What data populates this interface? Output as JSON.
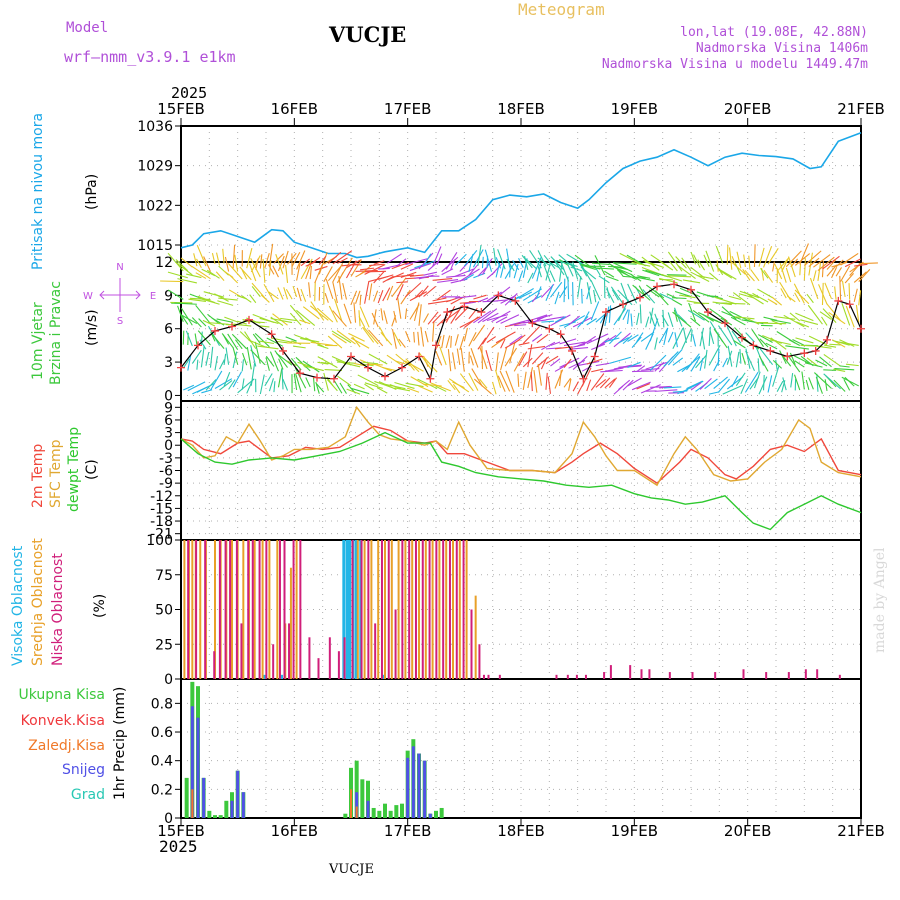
{
  "header": {
    "model_label": "Model",
    "model_name": "wrf–nmm_v3.9.1  e1km",
    "station": "VUCJE",
    "meteogram": "Meteogram",
    "lonlat": "lon,lat (19.08E, 42.88N)",
    "elevation": "Nadmorska Visina 1406m",
    "model_elevation": "Nadmorska Visina u modelu 1449.47m",
    "year": "2025",
    "footer_station": "VUCJE",
    "made_by": "made by Angel"
  },
  "colors": {
    "pressure": "#1aa7e8",
    "temp2m": "#f0483c",
    "sfc": "#e0a832",
    "dew": "#2ec82e",
    "high": "#22b5e6",
    "mid": "#e8a028",
    "low": "#d01e7a",
    "total": "#3cc83c",
    "conv": "#f0383c",
    "frozen": "#f07828",
    "snow": "#5050e6",
    "hail": "#28c8b4",
    "compass": "#c050e0"
  },
  "chart_data": [
    {
      "type": "line",
      "ylabel": "Pritisak na nivou mora",
      "unit": "(hPa)",
      "x_ticks": [
        "15FEB",
        "16FEB",
        "17FEB",
        "18FEB",
        "19FEB",
        "20FEB",
        "21FEB"
      ],
      "x_range_days": [
        0,
        6
      ],
      "ylim": [
        1012,
        1036
      ],
      "y_ticks": [
        1015,
        1022,
        1029,
        1036
      ],
      "series": [
        {
          "x": [
            0,
            0.1,
            0.2,
            0.35,
            0.5,
            0.65,
            0.8,
            0.9,
            1.0,
            1.15,
            1.3,
            1.45,
            1.55,
            1.65,
            1.8,
            2.0,
            2.15,
            2.3,
            2.45,
            2.6,
            2.75,
            2.9,
            3.05,
            3.2,
            3.35,
            3.5,
            3.6,
            3.75,
            3.9,
            4.05,
            4.2,
            4.35,
            4.5,
            4.65,
            4.8,
            4.95,
            5.1,
            5.25,
            5.4,
            5.55,
            5.65,
            5.8,
            6.0
          ],
          "y": [
            1014.5,
            1015,
            1017,
            1017.5,
            1016.5,
            1015.5,
            1017.7,
            1017.5,
            1015.5,
            1014.5,
            1013.5,
            1013.5,
            1012.8,
            1013,
            1013.8,
            1014.5,
            1013.7,
            1017.5,
            1017.5,
            1019.5,
            1023,
            1023.8,
            1023.5,
            1024,
            1022.5,
            1021.5,
            1023,
            1026,
            1028.5,
            1029.8,
            1030.5,
            1031.8,
            1030.5,
            1029,
            1030.5,
            1031.2,
            1030.8,
            1030.6,
            1030.2,
            1028.5,
            1028.8,
            1033.3,
            1034.8
          ]
        }
      ]
    },
    {
      "type": "line",
      "ylabel": [
        "10m Vjetar",
        "Brzina i Pravac"
      ],
      "unit": "(m/s)",
      "compass": {
        "n": "N",
        "e": "E",
        "w": "W",
        "s": "S"
      },
      "ylim": [
        -0.5,
        12
      ],
      "y_ticks": [
        0,
        3,
        6,
        9,
        12
      ],
      "series": [
        {
          "name": "wind speed",
          "x": [
            0,
            0.15,
            0.3,
            0.45,
            0.6,
            0.8,
            0.9,
            1.05,
            1.2,
            1.35,
            1.5,
            1.65,
            1.8,
            1.95,
            2.1,
            2.2,
            2.25,
            2.35,
            2.5,
            2.65,
            2.8,
            2.95,
            3.1,
            3.25,
            3.35,
            3.45,
            3.55,
            3.65,
            3.75,
            3.9,
            4.05,
            4.2,
            4.35,
            4.5,
            4.65,
            4.8,
            4.95,
            5.05,
            5.2,
            5.35,
            5.5,
            5.6,
            5.7,
            5.8,
            5.9,
            6.0
          ],
          "y": [
            2.5,
            4.5,
            5.8,
            6.2,
            6.8,
            5.5,
            4,
            2,
            1.6,
            1.5,
            3.5,
            2.5,
            1.7,
            2.5,
            3.5,
            1.5,
            4.5,
            7.5,
            8,
            7.5,
            9,
            8.5,
            6.5,
            6,
            5.5,
            4,
            1.5,
            3.5,
            7.5,
            8.2,
            8.8,
            9.8,
            10,
            9.5,
            7.5,
            6.5,
            5.2,
            4.5,
            4,
            3.5,
            3.8,
            4,
            5,
            8.5,
            8.2,
            6
          ]
        }
      ],
      "wind_directions": [
        "N",
        "NE",
        "E",
        "SE",
        "S",
        "SW",
        "W",
        "NW"
      ]
    },
    {
      "type": "line",
      "ylabel": [
        "2m Temp",
        "SFC Temp",
        "dewpt Temp"
      ],
      "unit": "(C)",
      "ylim": [
        -22.5,
        10.5
      ],
      "y_ticks": [
        9,
        6,
        3,
        0,
        -3,
        -6,
        -9,
        -12,
        -15,
        -18,
        -21
      ],
      "series": [
        {
          "name": "2m Temp",
          "x": [
            0,
            0.1,
            0.2,
            0.35,
            0.5,
            0.6,
            0.8,
            0.95,
            1.1,
            1.25,
            1.4,
            1.55,
            1.7,
            1.85,
            2.0,
            2.15,
            2.25,
            2.35,
            2.5,
            2.7,
            2.9,
            3.1,
            3.3,
            3.45,
            3.55,
            3.7,
            3.85,
            4.0,
            4.2,
            4.4,
            4.5,
            4.65,
            4.8,
            4.9,
            5.05,
            5.2,
            5.35,
            5.5,
            5.65,
            5.8,
            6.0
          ],
          "y": [
            1.5,
            1,
            -1,
            -2,
            0.5,
            1,
            -3,
            -2.5,
            -0.5,
            -1,
            -0.5,
            2,
            4.5,
            3.5,
            1,
            0.5,
            1,
            -2,
            -2,
            -4,
            -6,
            -6,
            -6.5,
            -4,
            -2,
            0.5,
            -2,
            -5.5,
            -9,
            -4,
            -1,
            -3,
            -7,
            -8,
            -5,
            -1,
            0,
            -1.5,
            1.5,
            -6,
            -7
          ]
        },
        {
          "name": "SFC Temp",
          "x": [
            0,
            0.1,
            0.2,
            0.3,
            0.4,
            0.5,
            0.6,
            0.7,
            0.8,
            0.9,
            1.0,
            1.15,
            1.3,
            1.45,
            1.55,
            1.65,
            1.75,
            1.85,
            2.0,
            2.15,
            2.25,
            2.35,
            2.45,
            2.55,
            2.7,
            2.9,
            3.1,
            3.3,
            3.45,
            3.55,
            3.65,
            3.75,
            3.85,
            4.0,
            4.2,
            4.35,
            4.45,
            4.55,
            4.7,
            4.85,
            5.0,
            5.15,
            5.3,
            5.45,
            5.55,
            5.65,
            5.8,
            6.0
          ],
          "y": [
            1.5,
            0,
            -3,
            -2.5,
            2,
            0.5,
            5,
            1,
            -3.5,
            -2.5,
            -1,
            -1,
            -0.5,
            2,
            9,
            5.5,
            2.5,
            1.5,
            1,
            0,
            1,
            -1,
            5.5,
            0,
            -5.5,
            -6,
            -6,
            -6.5,
            -2,
            5.5,
            2,
            -2.5,
            -6,
            -6,
            -9.5,
            -2,
            2,
            -1,
            -7,
            -8.5,
            -8,
            -4,
            -1,
            6,
            4,
            -4,
            -6.5,
            -7.5
          ]
        },
        {
          "name": "dewpt Temp",
          "x": [
            0,
            0.15,
            0.3,
            0.45,
            0.6,
            0.8,
            1.0,
            1.2,
            1.4,
            1.6,
            1.8,
            2.0,
            2.2,
            2.3,
            2.45,
            2.6,
            2.8,
            3.0,
            3.2,
            3.4,
            3.6,
            3.8,
            4.0,
            4.15,
            4.3,
            4.45,
            4.6,
            4.8,
            4.95,
            5.05,
            5.2,
            5.35,
            5.5,
            5.65,
            5.8,
            6.0
          ],
          "y": [
            1.5,
            -2,
            -4,
            -4.5,
            -3.5,
            -3,
            -3.5,
            -2.5,
            -1.5,
            0.5,
            3,
            0.5,
            0.5,
            -4,
            -5,
            -6.5,
            -7.5,
            -8,
            -8.5,
            -9.5,
            -10,
            -9.5,
            -11.5,
            -12.5,
            -13,
            -14,
            -13.5,
            -12,
            -16,
            -18.5,
            -20,
            -16,
            -14,
            -12,
            -14,
            -16
          ]
        }
      ]
    },
    {
      "type": "bar",
      "ylabel": [
        "Visoka Oblacnost",
        "Srednja Oblacnost",
        "Niska Oblacnost"
      ],
      "unit": "(%)",
      "ylim": [
        0,
        100
      ],
      "y_ticks": [
        0,
        25,
        50,
        75,
        100
      ],
      "series": [
        {
          "name": "Visoka Oblacnost",
          "x": [
            1.45,
            1.48,
            1.5,
            1.53,
            1.56,
            1.6,
            0.75,
            0.9,
            1.8
          ],
          "values": [
            100,
            100,
            100,
            100,
            100,
            100,
            3,
            3,
            3
          ]
        },
        {
          "name": "Srednja Oblacnost",
          "x": [
            0.03,
            0.07,
            0.1,
            0.13,
            0.17,
            0.22,
            0.3,
            0.35,
            0.4,
            0.45,
            0.5,
            0.55,
            0.6,
            0.65,
            0.72,
            0.78,
            0.85,
            0.92,
            0.97,
            1.02,
            1.56,
            1.62,
            1.68,
            1.74,
            1.8,
            1.86,
            1.92,
            1.98,
            2.04,
            2.1,
            2.16,
            2.22,
            2.28,
            2.34,
            2.4,
            2.46,
            2.52,
            2.6
          ],
          "values": [
            100,
            100,
            100,
            100,
            100,
            100,
            100,
            100,
            100,
            100,
            100,
            100,
            100,
            100,
            100,
            100,
            100,
            40,
            80,
            100,
            100,
            100,
            100,
            100,
            100,
            100,
            100,
            100,
            100,
            100,
            100,
            100,
            100,
            100,
            100,
            100,
            100,
            60
          ]
        },
        {
          "name": "Niska Oblacnost",
          "x": [
            0.05,
            0.12,
            0.2,
            0.28,
            0.33,
            0.38,
            0.42,
            0.48,
            0.52,
            0.58,
            0.62,
            0.68,
            0.74,
            0.8,
            0.86,
            0.9,
            0.94,
            0.98,
            1.04,
            1.12,
            1.2,
            1.3,
            1.38,
            1.43,
            1.5,
            1.58,
            1.64,
            1.7,
            1.76,
            1.82,
            1.88,
            1.94,
            2.0,
            2.06,
            2.12,
            2.18,
            2.24,
            2.3,
            2.36,
            2.42,
            2.48,
            2.55,
            2.62,
            2.66,
            2.7,
            2.8,
            3.3,
            3.4,
            3.48,
            3.56,
            3.72,
            3.78,
            3.95,
            4.05,
            4.12,
            4.3,
            4.5,
            4.7,
            4.95,
            5.15,
            5.35,
            5.5,
            5.6,
            5.8
          ],
          "values": [
            100,
            100,
            100,
            20,
            100,
            100,
            100,
            100,
            40,
            100,
            100,
            100,
            100,
            25,
            100,
            100,
            40,
            100,
            100,
            30,
            15,
            30,
            20,
            30,
            100,
            100,
            100,
            40,
            100,
            100,
            50,
            100,
            100,
            100,
            100,
            100,
            100,
            100,
            100,
            100,
            100,
            50,
            25,
            3,
            3,
            3,
            3,
            3,
            3,
            3,
            5,
            10,
            10,
            7,
            7,
            5,
            5,
            5,
            7,
            5,
            5,
            7,
            7,
            3
          ]
        }
      ]
    },
    {
      "type": "bar",
      "ylabel": "1hr Precip",
      "unit": "(mm)",
      "legend": [
        "Ukupna Kisa",
        "Konvek.Kisa",
        "Zaledj.Kisa",
        "Snijeg",
        "Grad"
      ],
      "ylim": [
        0,
        0.97
      ],
      "y_ticks": [
        0,
        0.2,
        0.4,
        0.6,
        0.8
      ],
      "series": [
        {
          "name": "Ukupna Kisa",
          "x": [
            0.05,
            0.1,
            0.15,
            0.2,
            0.25,
            0.3,
            0.35,
            0.4,
            0.45,
            0.5,
            0.55,
            1.45,
            1.5,
            1.55,
            1.6,
            1.65,
            1.7,
            1.75,
            1.8,
            1.85,
            1.9,
            1.95,
            2.0,
            2.05,
            2.1,
            2.15,
            2.2,
            2.25,
            2.3
          ],
          "values": [
            0.28,
            0.95,
            0.92,
            0.28,
            0.05,
            0.02,
            0.02,
            0.12,
            0.18,
            0.33,
            0.18,
            0.03,
            0.35,
            0.4,
            0.27,
            0.26,
            0.07,
            0.05,
            0.1,
            0.05,
            0.09,
            0.1,
            0.47,
            0.55,
            0.45,
            0.4,
            0.03,
            0.05,
            0.07
          ]
        },
        {
          "name": "Snijeg",
          "x": [
            0.1,
            0.15,
            0.2,
            0.45,
            0.5,
            0.55,
            1.55,
            1.65,
            2.0,
            2.05,
            2.1,
            2.15,
            2.2
          ],
          "values": [
            0.78,
            0.7,
            0.28,
            0.12,
            0.33,
            0.18,
            0.18,
            0.12,
            0.42,
            0.5,
            0.45,
            0.4,
            0.03
          ]
        },
        {
          "name": "Zaledj.Kisa",
          "x": [
            0.1,
            1.5,
            1.55
          ],
          "values": [
            0.2,
            0.2,
            0.08
          ]
        },
        {
          "name": "Konvek.Kisa",
          "x": [],
          "values": []
        },
        {
          "name": "Grad",
          "x": [],
          "values": []
        }
      ]
    }
  ]
}
